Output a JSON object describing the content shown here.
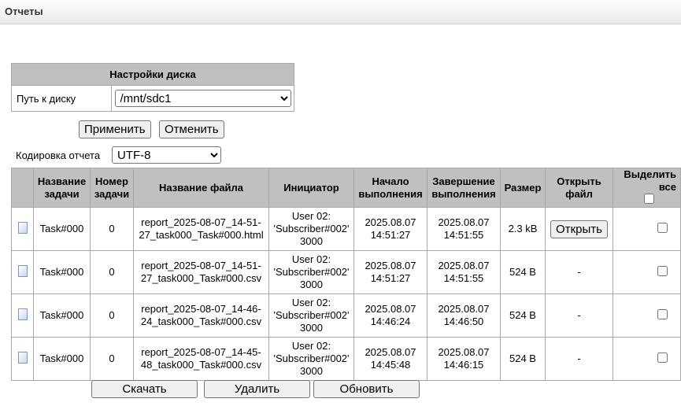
{
  "header": {
    "title": "Отчеты"
  },
  "disk": {
    "title": "Настройки диска",
    "path_label": "Путь к диску",
    "path_value": "/mnt/sdc1",
    "apply": "Применить",
    "cancel": "Отменить"
  },
  "encoding": {
    "label": "Кодировка отчета",
    "value": "UTF-8"
  },
  "table": {
    "columns": [
      "Название задачи",
      "Номер задачи",
      "Название файла",
      "Инициатор",
      "Начало выполнения",
      "Завершение выполнения",
      "Размер",
      "Открыть файл",
      "Выделить все"
    ],
    "rows": [
      {
        "task": "Task#000",
        "num": "0",
        "file": "report_2025-08-07_14-51-27_task000_Task#000.html",
        "initiator": "User 02: 'Subscriber#002' 3000",
        "start": "2025.08.07 14:51:27",
        "end": "2025.08.07 14:51:55",
        "size": "2.3 kB",
        "open": "Открыть"
      },
      {
        "task": "Task#000",
        "num": "0",
        "file": "report_2025-08-07_14-51-27_task000_Task#000.csv",
        "initiator": "User 02: 'Subscriber#002' 3000",
        "start": "2025.08.07 14:51:27",
        "end": "2025.08.07 14:51:55",
        "size": "524 B",
        "open": "-"
      },
      {
        "task": "Task#000",
        "num": "0",
        "file": "report_2025-08-07_14-46-24_task000_Task#000.csv",
        "initiator": "User 02: 'Subscriber#002' 3000",
        "start": "2025.08.07 14:46:24",
        "end": "2025.08.07 14:46:50",
        "size": "524 B",
        "open": "-"
      },
      {
        "task": "Task#000",
        "num": "0",
        "file": "report_2025-08-07_14-45-48_task000_Task#000.csv",
        "initiator": "User 02: 'Subscriber#002' 3000",
        "start": "2025.08.07 14:45:48",
        "end": "2025.08.07 14:46:15",
        "size": "524 B",
        "open": "-"
      }
    ]
  },
  "actions": {
    "download": "Скачать",
    "delete": "Удалить",
    "refresh": "Обновить"
  }
}
